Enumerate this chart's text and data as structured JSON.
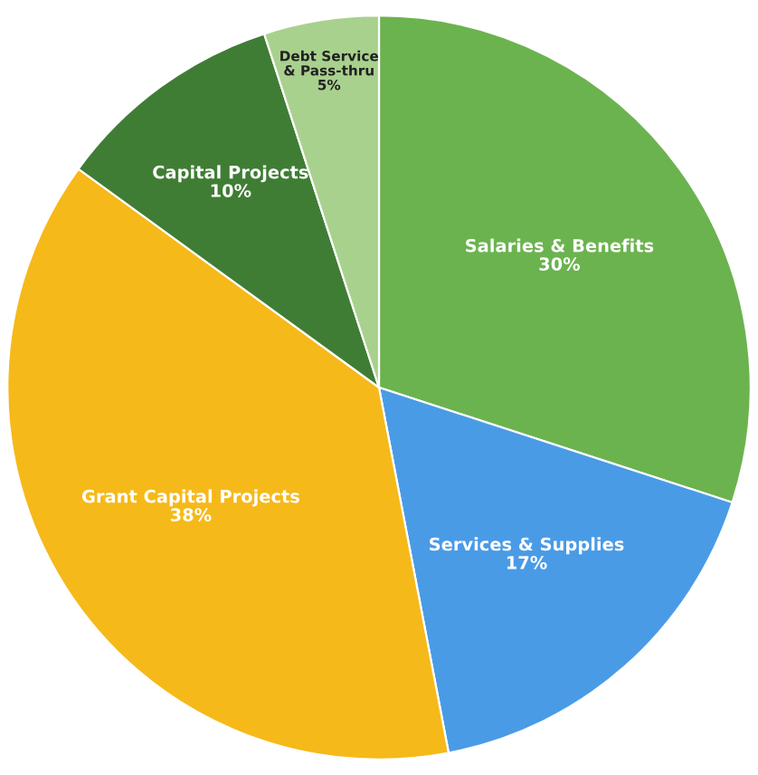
{
  "chart_data": {
    "type": "pie",
    "categories": [
      "Salaries & Benefits",
      "Services & Supplies",
      "Grant Capital Projects",
      "Capital Projects",
      "Debt Service\n& Pass-thru"
    ],
    "values": [
      30,
      17,
      38,
      10,
      5
    ],
    "value_labels": [
      "30%",
      "17%",
      "38%",
      "10%",
      "5%"
    ],
    "colors": [
      "#6bb34f",
      "#4a9be6",
      "#f6b91a",
      "#3f7d35",
      "#a9d18e"
    ],
    "legend": false
  }
}
